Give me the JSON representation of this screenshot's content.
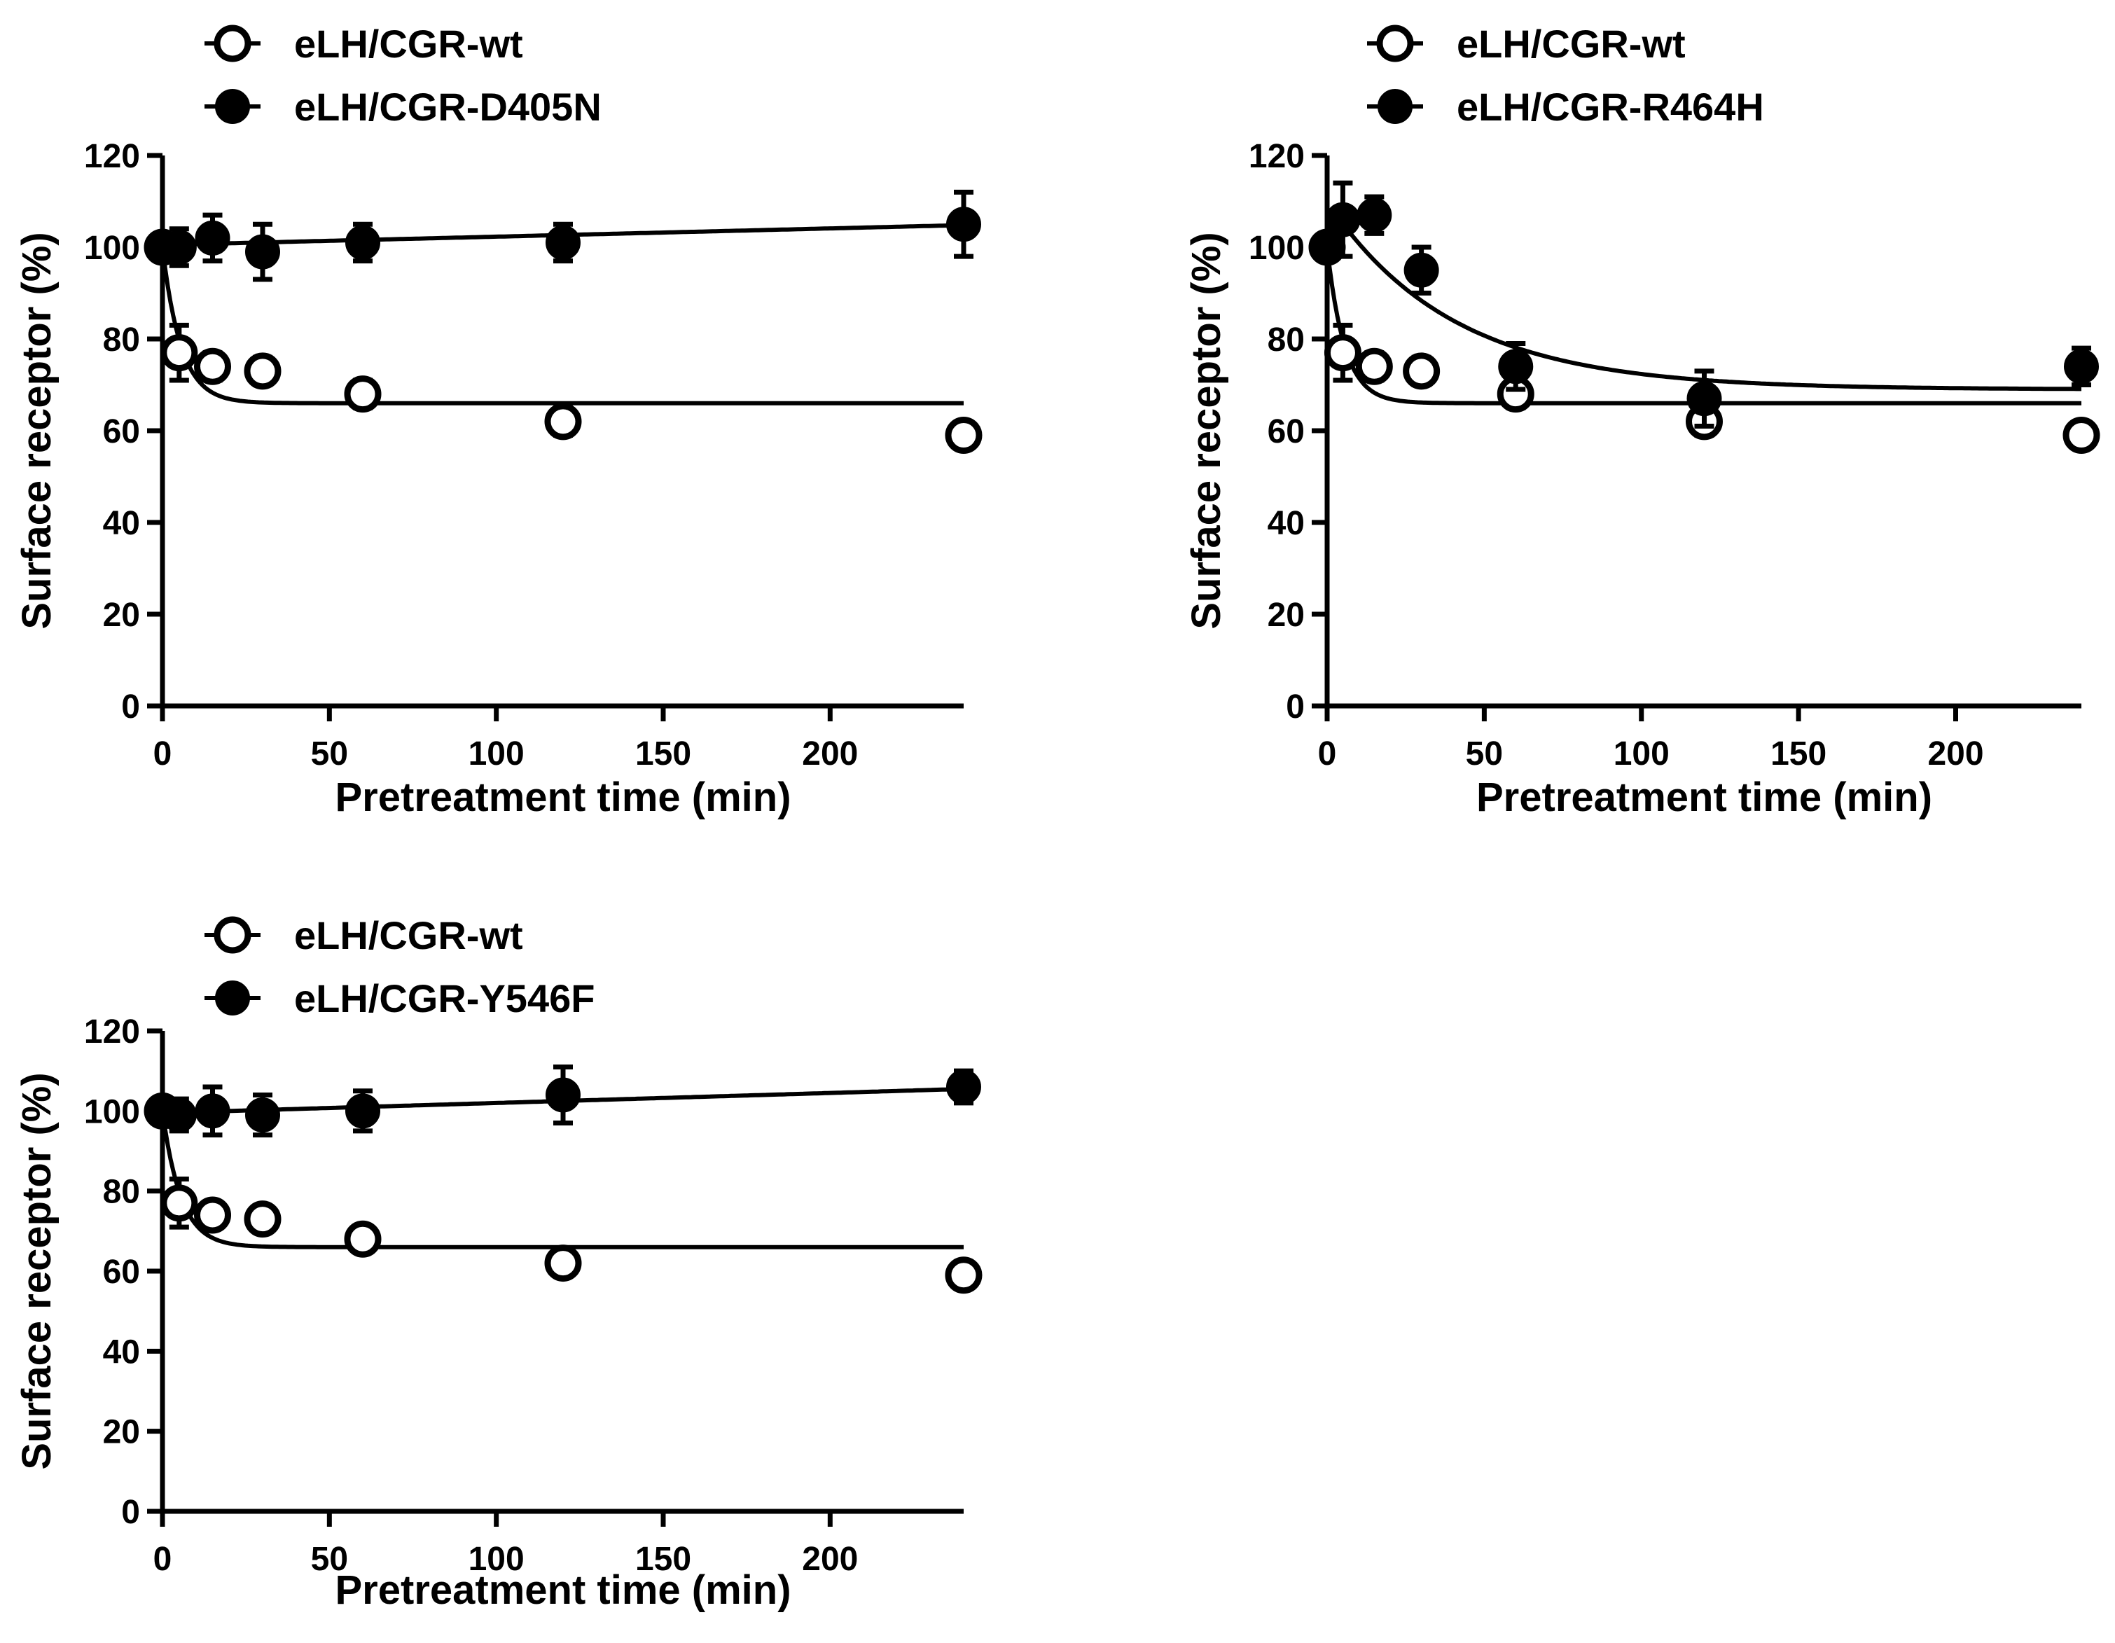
{
  "chart_data": [
    {
      "type": "scatter",
      "panel": "top-left",
      "xlabel": "Pretreatment time (min)",
      "ylabel": "Surface receptor (%)",
      "xlim": [
        0,
        240
      ],
      "ylim": [
        0,
        120
      ],
      "xticks": [
        0,
        50,
        100,
        150,
        200
      ],
      "yticks": [
        0,
        20,
        40,
        60,
        80,
        100,
        120
      ],
      "legend_position": "top-left",
      "series": [
        {
          "name": "eLH/CGR-wt",
          "marker": "open",
          "x": [
            0,
            5,
            15,
            30,
            60,
            120,
            240
          ],
          "y": [
            100,
            77,
            74,
            73,
            68,
            62,
            59
          ],
          "err": [
            0,
            6,
            3,
            3,
            3,
            3,
            1
          ],
          "fit": {
            "model": "decay",
            "y0": 100,
            "plateau": 66,
            "k": 0.18
          }
        },
        {
          "name": "eLH/CGR-D405N",
          "marker": "filled",
          "x": [
            0,
            5,
            15,
            30,
            60,
            120,
            240
          ],
          "y": [
            100,
            100,
            102,
            99,
            101,
            101,
            105
          ],
          "err": [
            0,
            4,
            5,
            6,
            4,
            4,
            7
          ],
          "fit": {
            "model": "linear",
            "y0": 100.5,
            "slope": 0.018
          }
        }
      ]
    },
    {
      "type": "scatter",
      "panel": "top-right",
      "xlabel": "Pretreatment time (min)",
      "ylabel": "Surface receptor (%)",
      "xlim": [
        0,
        240
      ],
      "ylim": [
        0,
        120
      ],
      "xticks": [
        0,
        50,
        100,
        150,
        200
      ],
      "yticks": [
        0,
        20,
        40,
        60,
        80,
        100,
        120
      ],
      "legend_position": "top-left",
      "series": [
        {
          "name": "eLH/CGR-wt",
          "marker": "open",
          "x": [
            0,
            5,
            15,
            30,
            60,
            120,
            240
          ],
          "y": [
            100,
            77,
            74,
            73,
            68,
            62,
            59
          ],
          "err": [
            0,
            6,
            3,
            3,
            3,
            3,
            1
          ],
          "fit": {
            "model": "decay",
            "y0": 100,
            "plateau": 66,
            "k": 0.18
          }
        },
        {
          "name": "eLH/CGR-R464H",
          "marker": "filled",
          "x": [
            0,
            5,
            15,
            30,
            60,
            120,
            240
          ],
          "y": [
            100,
            106,
            107,
            95,
            74,
            67,
            74
          ],
          "err": [
            0,
            8,
            4,
            5,
            5,
            6,
            4
          ],
          "fit": {
            "model": "decay",
            "y0": 107,
            "plateau": 69,
            "k": 0.025,
            "x_start": 3
          }
        }
      ]
    },
    {
      "type": "scatter",
      "panel": "bottom-left",
      "xlabel": "Pretreatment time (min)",
      "ylabel": "Surface receptor (%)",
      "xlim": [
        0,
        240
      ],
      "ylim": [
        0,
        120
      ],
      "xticks": [
        0,
        50,
        100,
        150,
        200
      ],
      "yticks": [
        0,
        20,
        40,
        60,
        80,
        100,
        120
      ],
      "legend_position": "top-left",
      "series": [
        {
          "name": "eLH/CGR-wt",
          "marker": "open",
          "x": [
            0,
            5,
            15,
            30,
            60,
            120,
            240
          ],
          "y": [
            100,
            77,
            74,
            73,
            68,
            62,
            59
          ],
          "err": [
            0,
            6,
            3,
            3,
            3,
            3,
            1
          ],
          "fit": {
            "model": "decay",
            "y0": 100,
            "plateau": 66,
            "k": 0.18
          }
        },
        {
          "name": "eLH/CGR-Y546F",
          "marker": "filled",
          "x": [
            0,
            5,
            15,
            30,
            60,
            120,
            240
          ],
          "y": [
            100,
            99,
            100,
            99,
            100,
            104,
            106
          ],
          "err": [
            0,
            4,
            6,
            5,
            5,
            7,
            4
          ],
          "fit": {
            "model": "linear",
            "y0": 99.5,
            "slope": 0.025
          }
        }
      ]
    }
  ]
}
